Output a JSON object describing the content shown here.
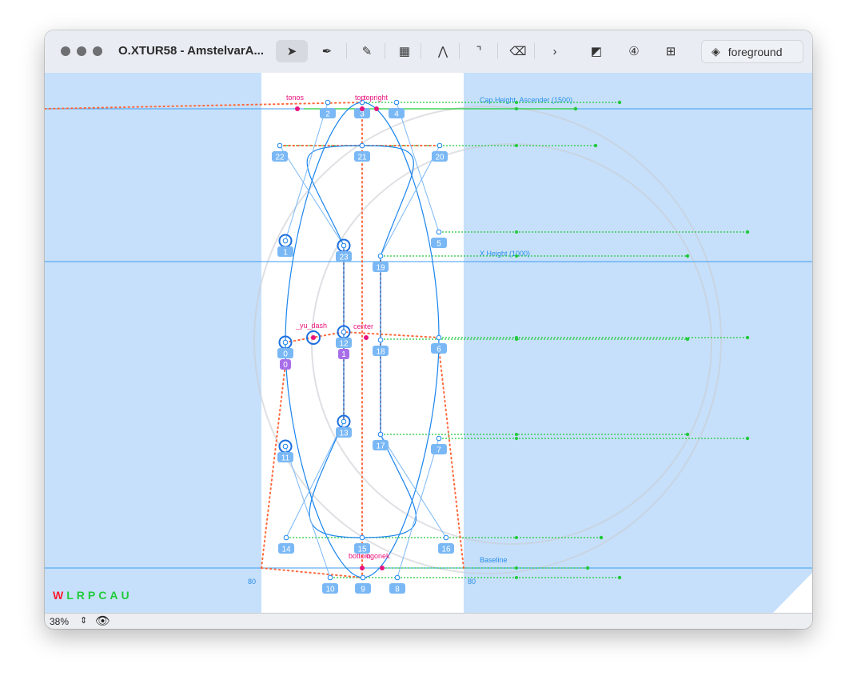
{
  "window": {
    "title": "O.XTUR58 - AmstelvarA..."
  },
  "toolbar": {
    "tools": [
      {
        "name": "pointer-tool",
        "icon": "arrow-pointer-icon",
        "glyph": "➤",
        "active": true
      },
      {
        "name": "pen-tool",
        "icon": "pen-nib-icon",
        "glyph": "✒",
        "active": false
      },
      {
        "name": "knife-tool",
        "icon": "knife-icon",
        "glyph": "✎",
        "active": false
      },
      {
        "name": "measure-tool",
        "icon": "ruler-icon",
        "glyph": "▦",
        "active": false
      },
      {
        "name": "skeleton-tool",
        "icon": "curve-icon",
        "glyph": "⋀",
        "active": false
      },
      {
        "name": "corner-tool",
        "icon": "corner-icon",
        "glyph": "⌝",
        "active": false
      },
      {
        "name": "eraser-tool",
        "icon": "eraser-icon",
        "glyph": "⌫",
        "active": false
      },
      {
        "name": "more-tools",
        "icon": "chevron-right-icon",
        "glyph": "›",
        "active": false
      },
      {
        "name": "mask-tool",
        "icon": "squares-icon",
        "glyph": "◩",
        "active": false
      },
      {
        "name": "component-tool",
        "icon": "component-4-icon",
        "glyph": "④",
        "active": false
      },
      {
        "name": "add-component-tool",
        "icon": "add-component-icon",
        "glyph": "⊞",
        "active": false
      }
    ],
    "layer_label": "foreground"
  },
  "canvas": {
    "guides": {
      "cap": "Cap Height, Ascender (1500)",
      "xheight": "X Height (1000)",
      "baseline": "Baseline"
    },
    "anchors": {
      "tonos": "tonos",
      "top": "top",
      "topright": "topright",
      "yu_dash": "_yu_dash",
      "center": "center",
      "bottom": "bottom",
      "ogonek": "ogonek"
    },
    "sidebearing_left": "80",
    "sidebearing_right": "80",
    "point_labels": [
      "0",
      "1",
      "2",
      "3",
      "4",
      "5",
      "6",
      "7",
      "8",
      "9",
      "10",
      "11",
      "12",
      "13",
      "14",
      "15",
      "16",
      "17",
      "18",
      "19",
      "20",
      "21",
      "22",
      "23"
    ],
    "component_labels": [
      "0",
      "1"
    ],
    "codes": [
      {
        "c": "W",
        "color": "#ff1a2e"
      },
      {
        "c": "L",
        "color": "#1fcc3a"
      },
      {
        "c": "R",
        "color": "#1fcc3a"
      },
      {
        "c": "P",
        "color": "#1fcc3a"
      },
      {
        "c": "C",
        "color": "#1fcc3a"
      },
      {
        "c": "A",
        "color": "#1fcc3a"
      },
      {
        "c": "U",
        "color": "#1fcc3a"
      }
    ]
  },
  "statusbar": {
    "zoom": "38%"
  },
  "colors": {
    "canvas": "#c6e0fb",
    "outline": "#1a85ee",
    "anchor": "#e8137b",
    "metrics": "#21c93c",
    "guide": "#ff6a3d",
    "label": "#7ab8f5",
    "component": "#a86ee8"
  }
}
